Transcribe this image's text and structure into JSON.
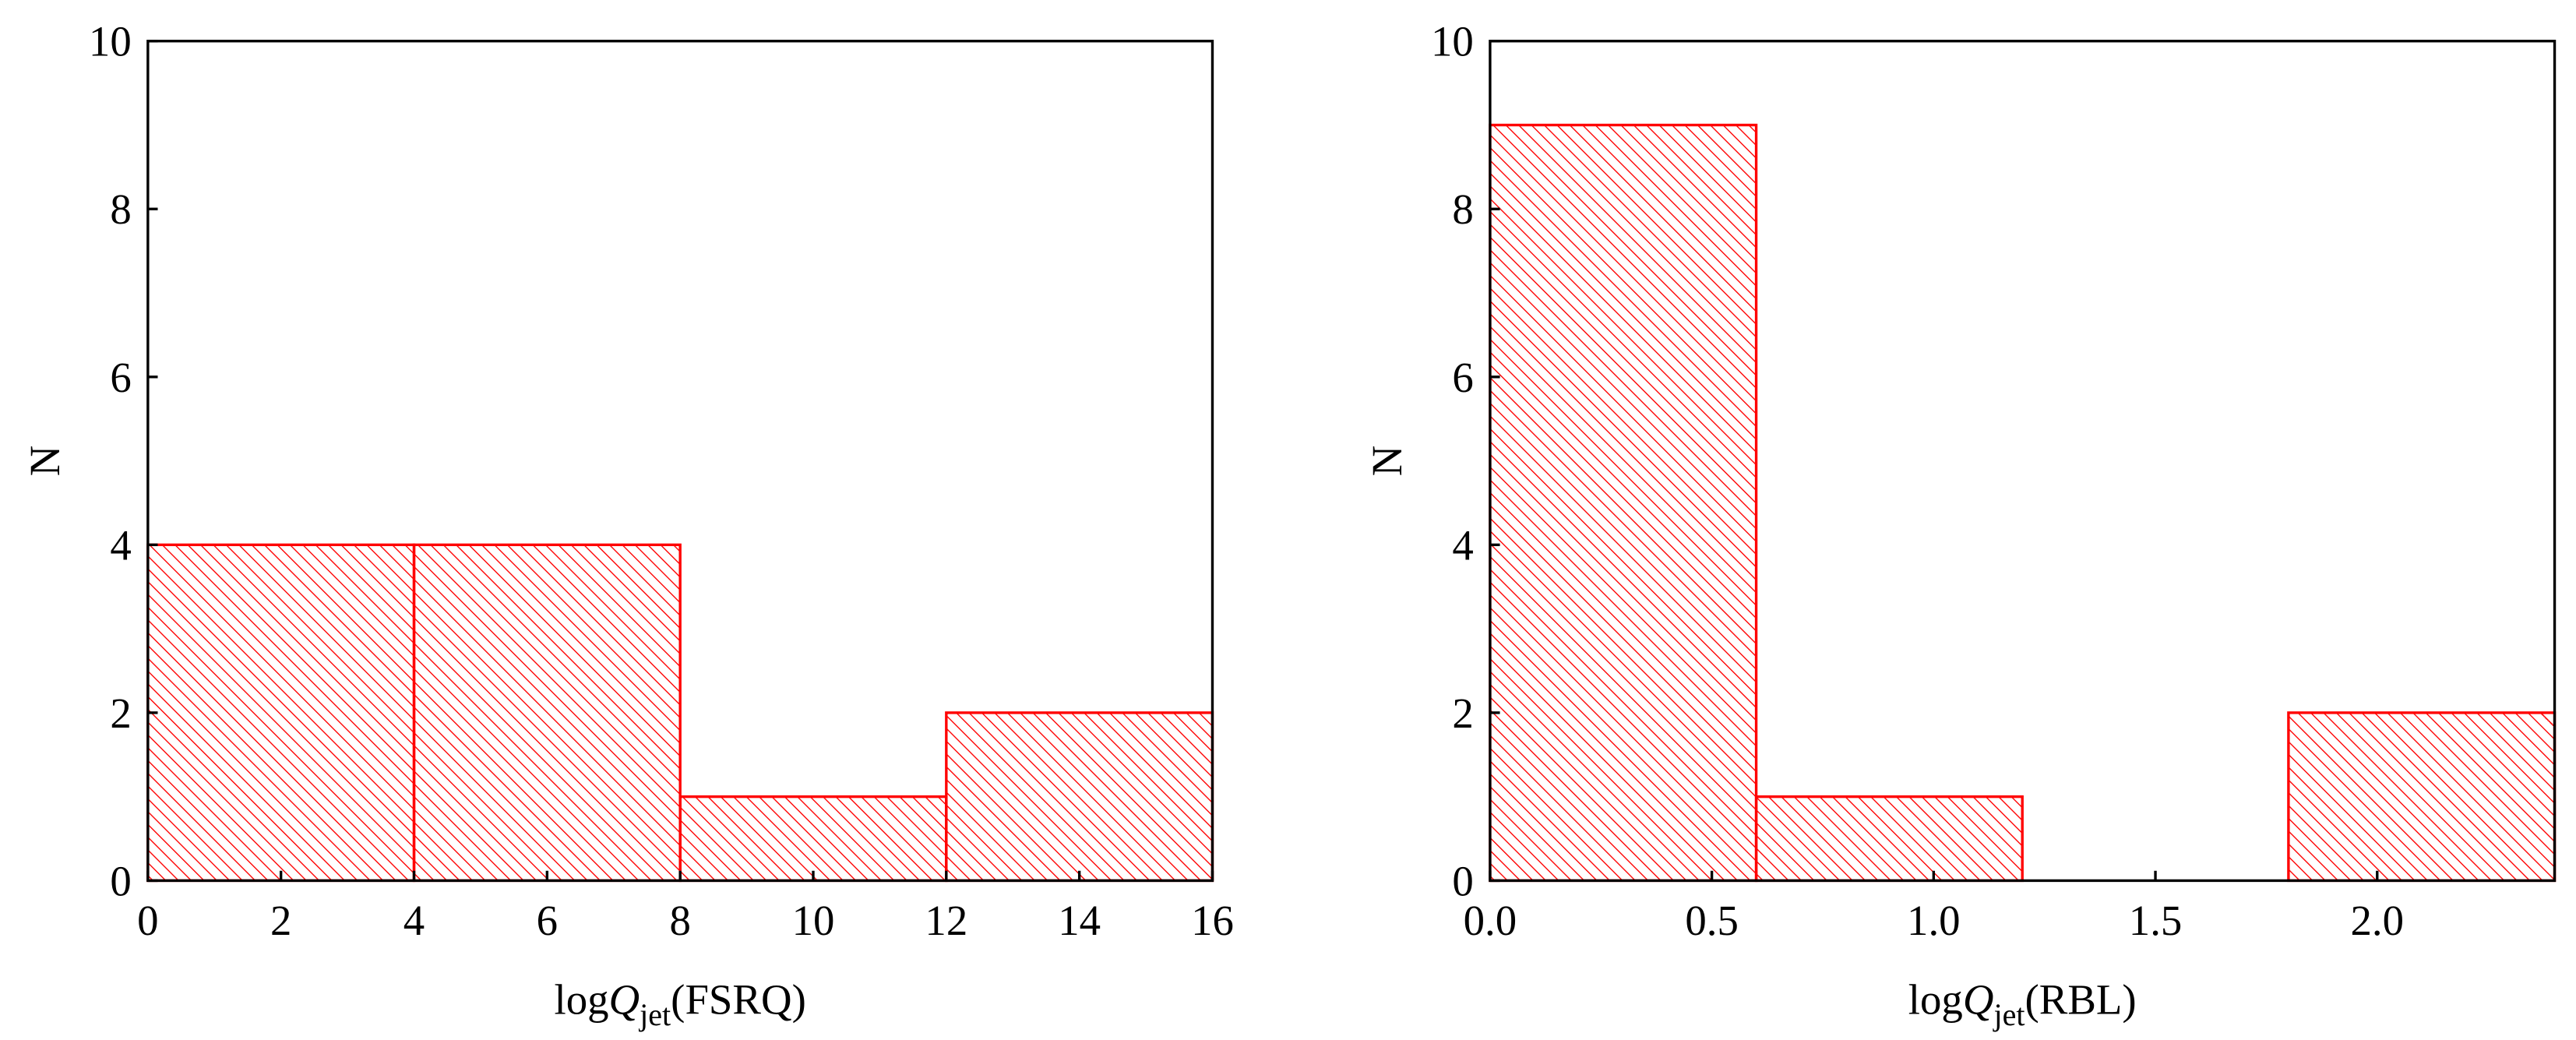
{
  "chart_data": [
    {
      "type": "histogram",
      "xlabel": {
        "prefix": "log",
        "italic": "Q",
        "subscript": "jet",
        "suffix": "(FSRQ)"
      },
      "ylabel": "N",
      "bins": [
        0,
        4,
        8,
        12,
        16
      ],
      "counts": [
        4,
        4,
        1,
        2
      ],
      "color": "#ff0000",
      "hatch": true,
      "xlim": [
        0,
        16
      ],
      "xticks": [
        0,
        2,
        4,
        6,
        8,
        10,
        12,
        14,
        16
      ],
      "ylim": [
        0,
        10
      ],
      "yticks": [
        0,
        2,
        4,
        6,
        8,
        10
      ]
    },
    {
      "type": "histogram",
      "xlabel": {
        "prefix": "log",
        "italic": "Q",
        "subscript": "jet",
        "suffix": "(RBL)"
      },
      "ylabel": "N",
      "bins": [
        0,
        0.6,
        1.2,
        1.8,
        2.4
      ],
      "counts": [
        9,
        1,
        0,
        2
      ],
      "color": "#ff0000",
      "hatch": true,
      "xlim": [
        0,
        2.4
      ],
      "xticks": [
        {
          "value": 0,
          "label": "0.0"
        },
        0.5,
        {
          "value": 1,
          "label": "1.0"
        },
        1.5,
        {
          "value": 2,
          "label": "2.0"
        }
      ],
      "ylim": [
        0,
        10
      ],
      "yticks": [
        0,
        2,
        4,
        6,
        8,
        10
      ]
    }
  ]
}
